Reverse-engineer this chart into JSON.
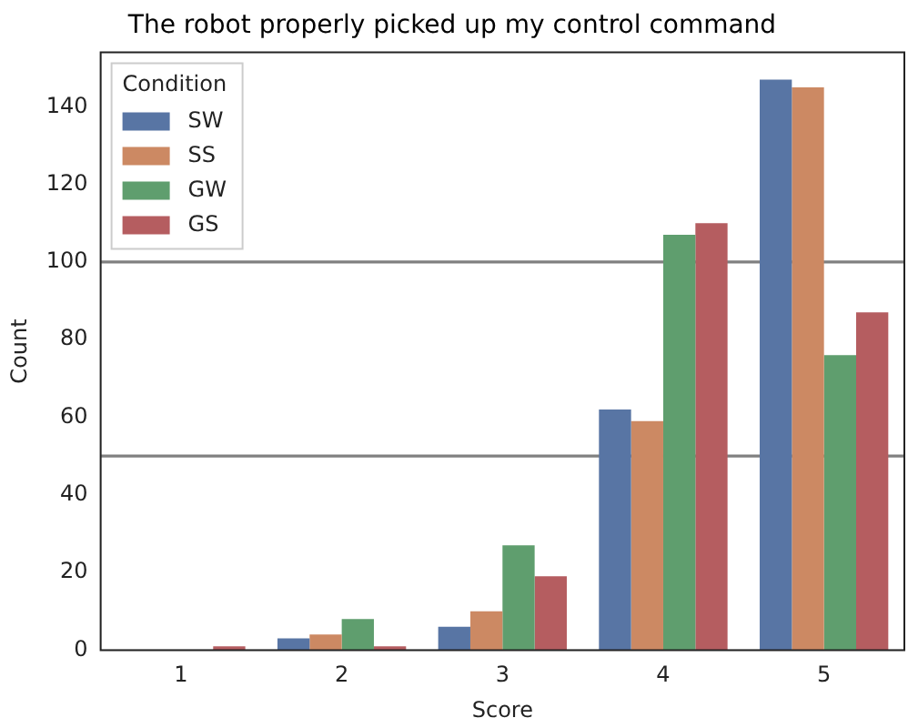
{
  "chart_data": {
    "type": "bar",
    "title": "The robot properly picked up my control command",
    "xlabel": "Score",
    "ylabel": "Count",
    "legend_title": "Condition",
    "categories": [
      "1",
      "2",
      "3",
      "4",
      "5"
    ],
    "series": [
      {
        "name": "SW",
        "color": "#5875a4",
        "values": [
          0,
          3,
          6,
          62,
          147
        ]
      },
      {
        "name": "SS",
        "color": "#cc8963",
        "values": [
          0,
          4,
          10,
          59,
          145
        ]
      },
      {
        "name": "GW",
        "color": "#5f9e6e",
        "values": [
          0,
          8,
          27,
          107,
          76
        ]
      },
      {
        "name": "GS",
        "color": "#b55d60",
        "values": [
          1,
          1,
          19,
          110,
          87
        ]
      }
    ],
    "ylim": [
      0,
      154
    ],
    "yticks": [
      0,
      20,
      40,
      60,
      80,
      100,
      120,
      140
    ],
    "grid": false,
    "legend": "top left",
    "ref_lines": [
      {
        "axis": "y",
        "value": 100,
        "color": "#808080"
      },
      {
        "axis": "y",
        "value": 50,
        "color": "#808080"
      }
    ]
  }
}
